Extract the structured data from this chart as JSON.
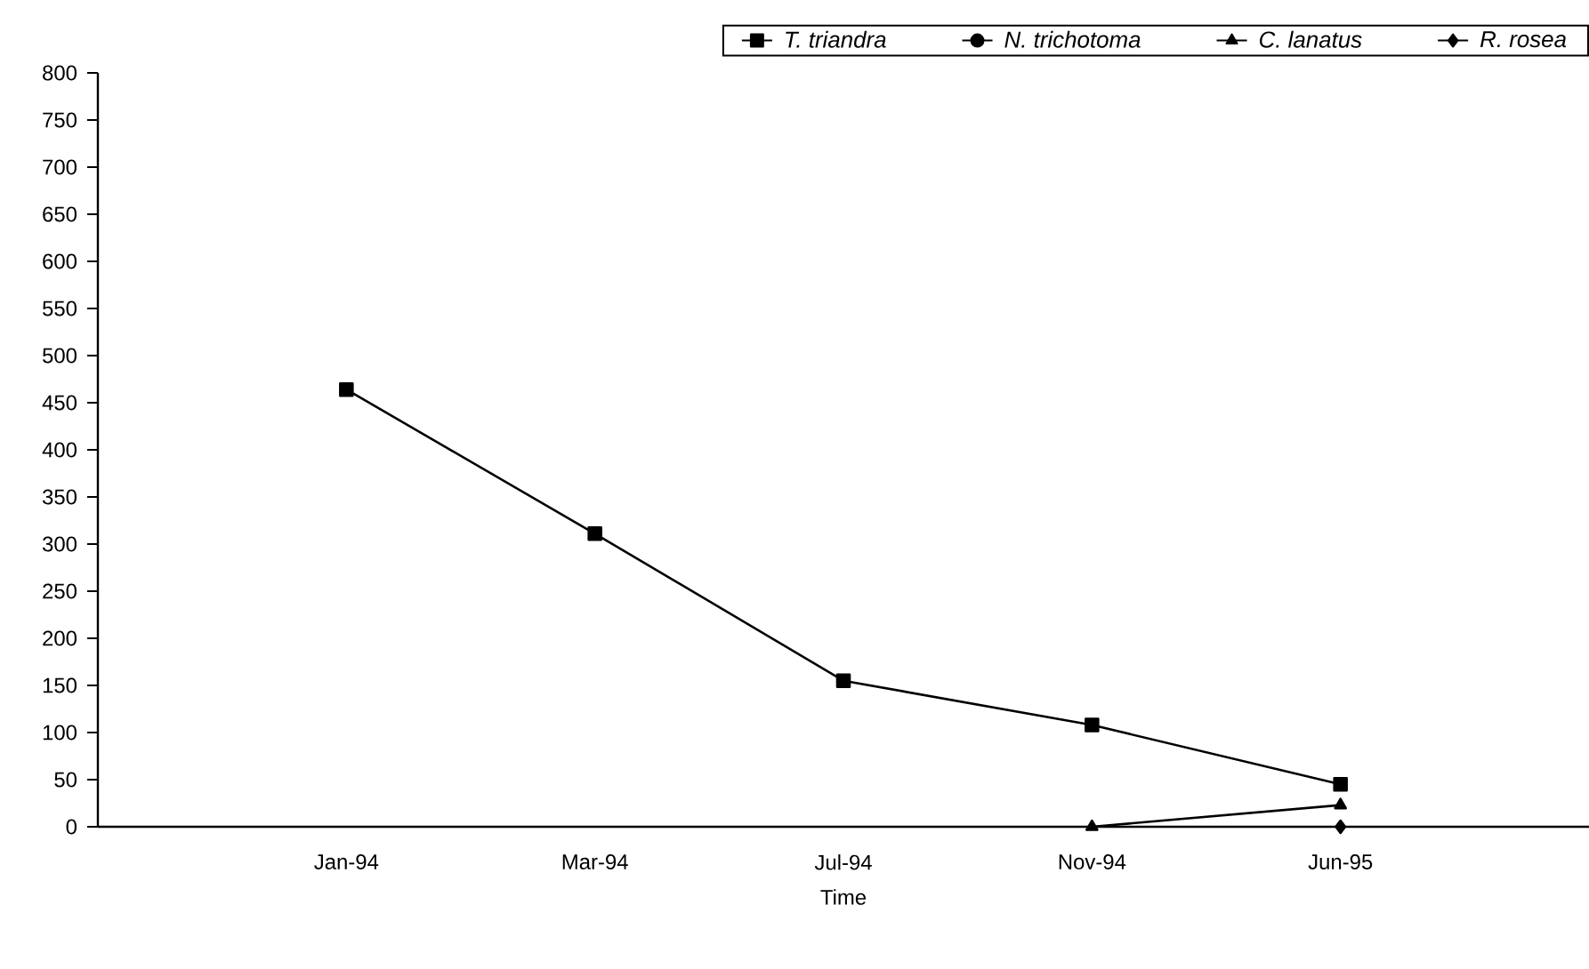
{
  "chart_data": {
    "type": "line",
    "xlabel": "Time",
    "categories": [
      "Jan-94",
      "Mar-94",
      "Jul-94",
      "Nov-94",
      "Jun-95"
    ],
    "series": [
      {
        "name": "*T. triandra*",
        "color": "#000000",
        "marker": "square",
        "values": [
          464,
          311,
          155,
          108,
          45
        ]
      },
      {
        "name": "*N. trichotoma*",
        "color": "#000000",
        "marker": "circle",
        "values": [
          null,
          null,
          null,
          null,
          null
        ]
      },
      {
        "name": "*C. lanatus*",
        "color": "#000000",
        "marker": "triangle",
        "values": [
          null,
          null,
          null,
          0,
          23
        ]
      },
      {
        "name": "*R. rosea*",
        "color": "#000000",
        "marker": "diamond",
        "values": [
          null,
          null,
          null,
          null,
          0
        ]
      }
    ],
    "ylim": [
      0,
      800
    ],
    "yticks": [
      0,
      50,
      100,
      150,
      200,
      250,
      300,
      350,
      400,
      450,
      500,
      550,
      600,
      650,
      700,
      750,
      800
    ],
    "grid": false,
    "legend": "top",
    "line_style": "solid"
  }
}
